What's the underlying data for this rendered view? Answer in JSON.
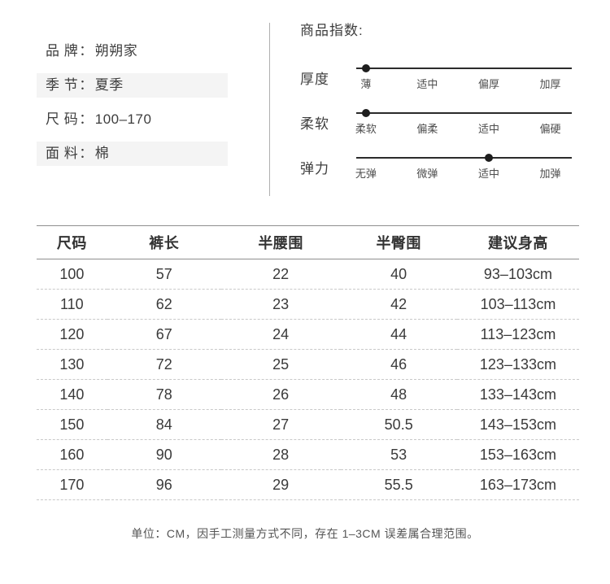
{
  "attributes": {
    "separator": "：",
    "rows": [
      {
        "label": "品 牌",
        "value": "朔朔家",
        "highlighted": false
      },
      {
        "label": "季 节",
        "value": "夏季",
        "highlighted": true
      },
      {
        "label": "尺 码",
        "value": "100–170",
        "highlighted": false
      },
      {
        "label": "面 料",
        "value": "棉",
        "highlighted": true
      }
    ]
  },
  "indices": {
    "title": "商品指数:",
    "sliders": [
      {
        "name": "厚度",
        "labels": [
          "薄",
          "适中",
          "偏厚",
          "加厚"
        ],
        "selected_index": 0
      },
      {
        "name": "柔软",
        "labels": [
          "柔软",
          "偏柔",
          "适中",
          "偏硬"
        ],
        "selected_index": 0
      },
      {
        "name": "弹力",
        "labels": [
          "无弹",
          "微弹",
          "适中",
          "加弹"
        ],
        "selected_index": 2
      }
    ]
  },
  "size_table": {
    "headers": [
      "尺码",
      "裤长",
      "半腰围",
      "半臀围",
      "建议身高"
    ],
    "rows": [
      [
        "100",
        "57",
        "22",
        "40",
        "93–103cm"
      ],
      [
        "110",
        "62",
        "23",
        "42",
        "103–113cm"
      ],
      [
        "120",
        "67",
        "24",
        "44",
        "113–123cm"
      ],
      [
        "130",
        "72",
        "25",
        "46",
        "123–133cm"
      ],
      [
        "140",
        "78",
        "26",
        "48",
        "133–143cm"
      ],
      [
        "150",
        "84",
        "27",
        "50.5",
        "143–153cm"
      ],
      [
        "160",
        "90",
        "28",
        "53",
        "153–163cm"
      ],
      [
        "170",
        "96",
        "29",
        "55.5",
        "163–173cm"
      ]
    ]
  },
  "note": "单位：CM，因手工测量方式不同，存在 1–3CM 误差属合理范围。",
  "colors": {
    "text": "#3d3d3d",
    "highlight_bg": "#f4f4f4",
    "track": "#2b2b2b",
    "dot": "#1e1e1e",
    "divider": "#b0b0b0",
    "solid_border": "#8f8f8f",
    "dashed_border": "#c9c9c9",
    "note_text": "#555555"
  }
}
